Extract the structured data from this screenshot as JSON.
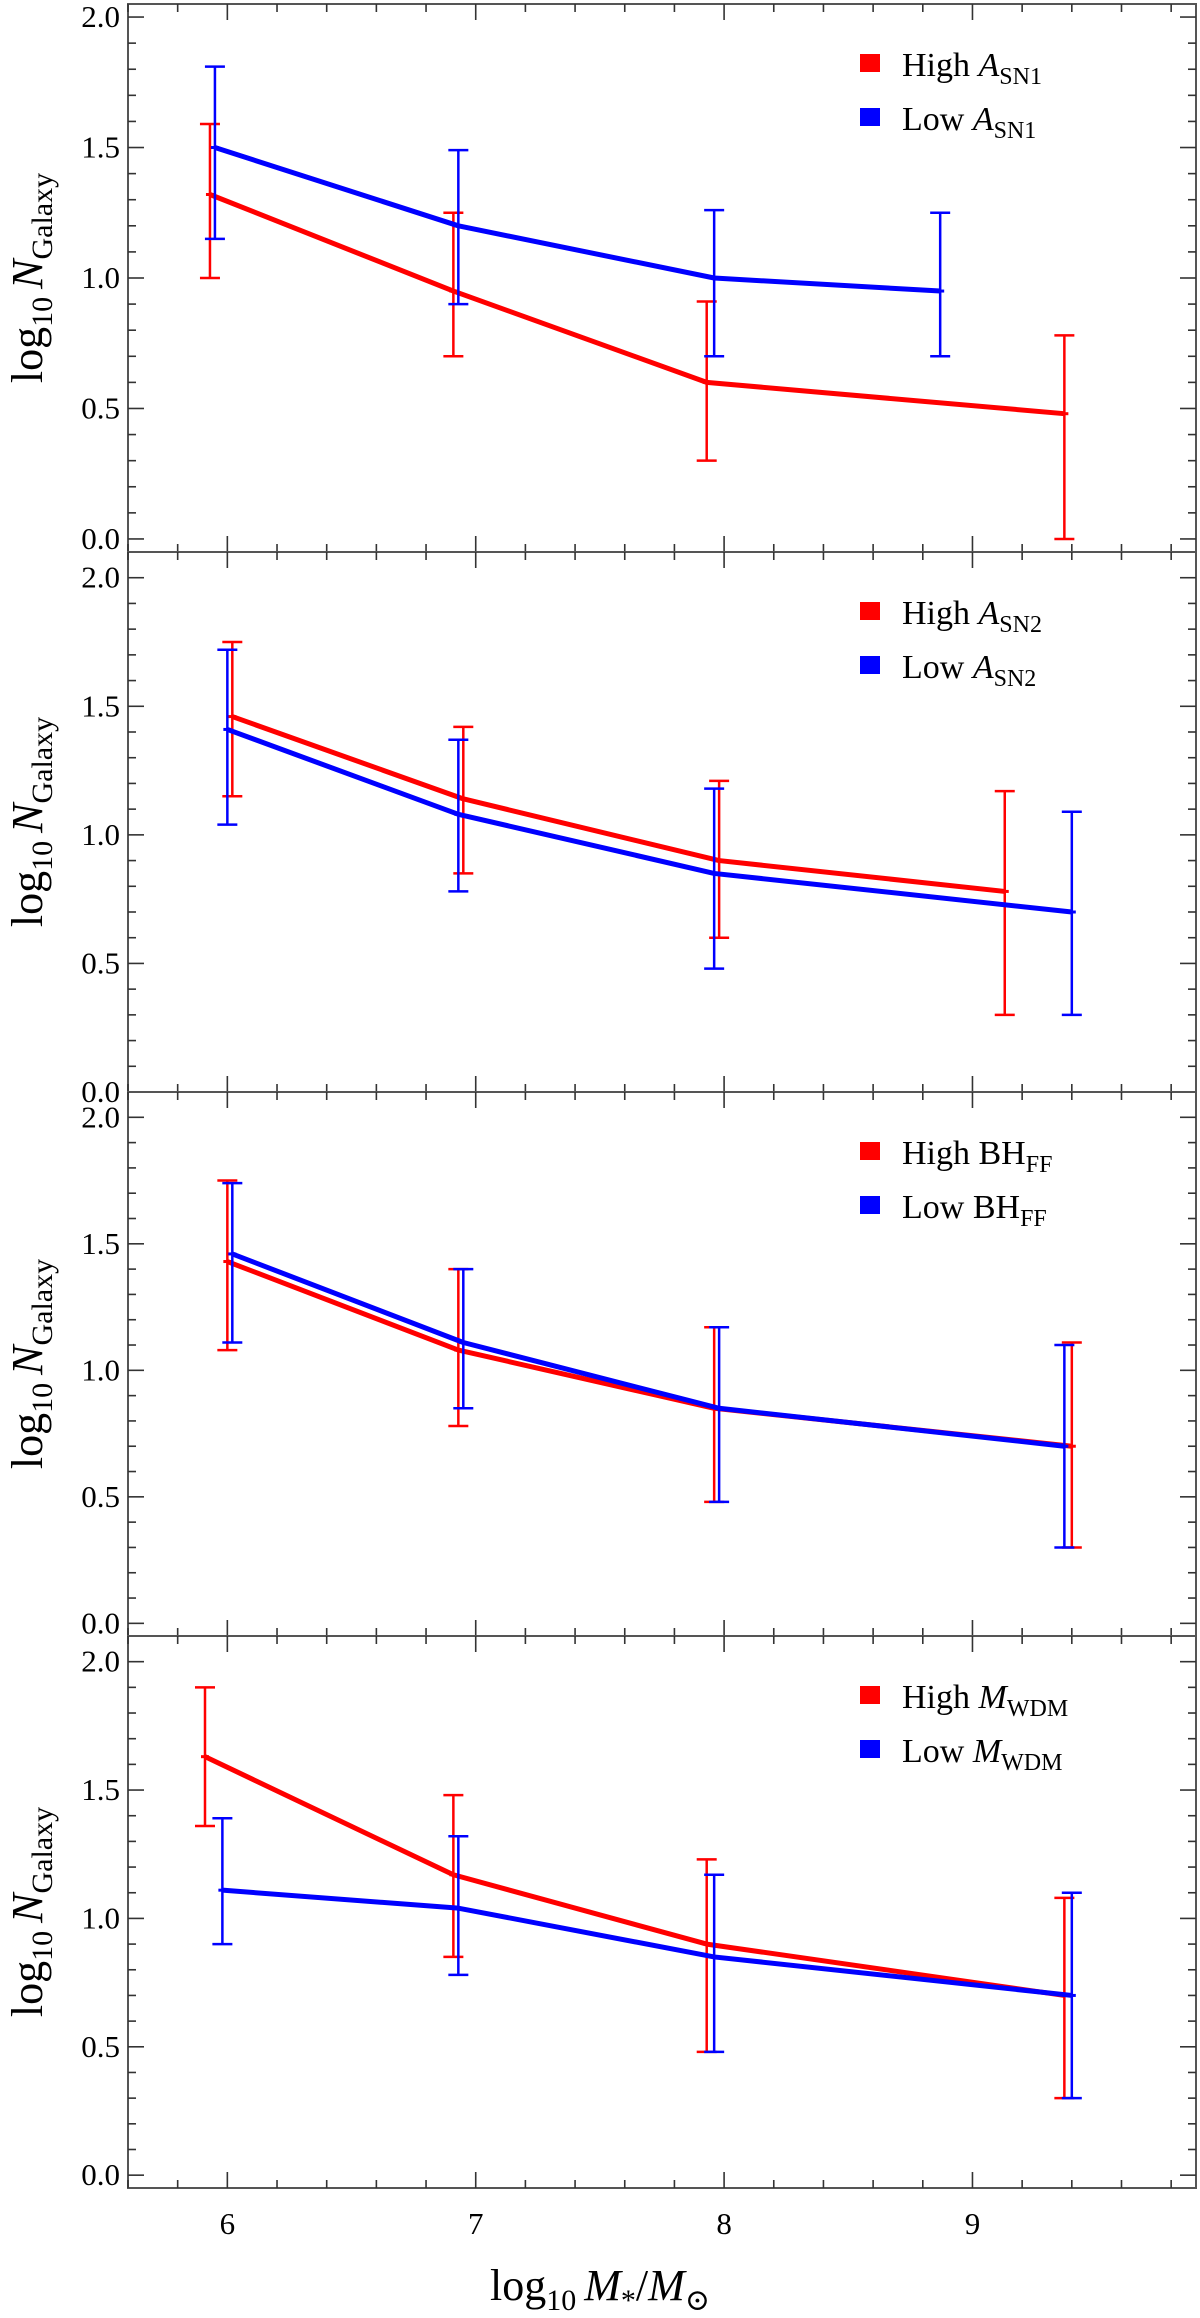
{
  "figure": {
    "xlabel": {
      "base": "log",
      "sub": "10",
      "math_M": "M",
      "sub_star": "*",
      "slash": "/",
      "math_M2": "M",
      "sub_sun": "⊙"
    },
    "ylabel": {
      "base": "log",
      "sub": "10",
      "math_N": "N",
      "sub_galaxy": "Galaxy"
    },
    "x_ticks": [
      "6",
      "7",
      "8",
      "9"
    ],
    "xlim": [
      5.6,
      9.9
    ]
  },
  "chart_data": [
    {
      "type": "line",
      "panel": "A_SN1",
      "ylim": [
        -0.05,
        2.05
      ],
      "y_ticks": [
        "0.0",
        "0.5",
        "1.0",
        "1.5",
        "2.0"
      ],
      "legend": [
        {
          "word": "High",
          "symbol": "A",
          "sub": "SN1",
          "color": "#ff0000",
          "italic": true
        },
        {
          "word": "Low",
          "symbol": "A",
          "sub": "SN1",
          "color": "#0000ff",
          "italic": true
        }
      ],
      "series": [
        {
          "name": "High A_SN1",
          "color": "#ff0000",
          "x": [
            5.93,
            6.91,
            7.93,
            9.37
          ],
          "y": [
            1.32,
            0.95,
            0.6,
            0.48
          ],
          "err_low": [
            1.0,
            0.7,
            0.3,
            0.0
          ],
          "err_high": [
            1.59,
            1.25,
            0.91,
            0.78
          ]
        },
        {
          "name": "Low A_SN1",
          "color": "#0000ff",
          "x": [
            5.95,
            6.93,
            7.96,
            8.87
          ],
          "y": [
            1.5,
            1.2,
            1.0,
            0.95
          ],
          "err_low": [
            1.15,
            0.9,
            0.7,
            0.7
          ],
          "err_high": [
            1.81,
            1.49,
            1.26,
            1.25
          ]
        }
      ]
    },
    {
      "type": "line",
      "panel": "A_SN2",
      "ylim": [
        0.0,
        2.1
      ],
      "y_ticks": [
        "0.0",
        "0.5",
        "1.0",
        "1.5",
        "2.0"
      ],
      "legend": [
        {
          "word": "High",
          "symbol": "A",
          "sub": "SN2",
          "color": "#ff0000",
          "italic": true
        },
        {
          "word": "Low",
          "symbol": "A",
          "sub": "SN2",
          "color": "#0000ff",
          "italic": true
        }
      ],
      "series": [
        {
          "name": "High A_SN2",
          "color": "#ff0000",
          "x": [
            6.02,
            6.95,
            7.98,
            9.13
          ],
          "y": [
            1.46,
            1.14,
            0.9,
            0.78
          ],
          "err_low": [
            1.15,
            0.85,
            0.6,
            0.3
          ],
          "err_high": [
            1.75,
            1.42,
            1.21,
            1.17
          ]
        },
        {
          "name": "Low A_SN2",
          "color": "#0000ff",
          "x": [
            6.0,
            6.93,
            7.96,
            9.4
          ],
          "y": [
            1.41,
            1.08,
            0.85,
            0.7
          ],
          "err_low": [
            1.04,
            0.78,
            0.48,
            0.3
          ],
          "err_high": [
            1.72,
            1.37,
            1.18,
            1.09
          ]
        }
      ]
    },
    {
      "type": "line",
      "panel": "BH_FF",
      "ylim": [
        -0.05,
        2.1
      ],
      "y_ticks": [
        "0.0",
        "0.5",
        "1.0",
        "1.5",
        "2.0"
      ],
      "legend": [
        {
          "word": "High",
          "symbol": "BH",
          "sub": "FF",
          "color": "#ff0000",
          "italic": false
        },
        {
          "word": "Low",
          "symbol": "BH",
          "sub": "FF",
          "color": "#0000ff",
          "italic": false
        }
      ],
      "series": [
        {
          "name": "High BH_FF",
          "color": "#ff0000",
          "x": [
            6.0,
            6.93,
            7.96,
            9.4
          ],
          "y": [
            1.43,
            1.08,
            0.85,
            0.7
          ],
          "err_low": [
            1.08,
            0.78,
            0.48,
            0.3
          ],
          "err_high": [
            1.75,
            1.4,
            1.17,
            1.11
          ]
        },
        {
          "name": "Low BH_FF",
          "color": "#0000ff",
          "x": [
            6.02,
            6.95,
            7.98,
            9.37
          ],
          "y": [
            1.46,
            1.11,
            0.85,
            0.7
          ],
          "err_low": [
            1.11,
            0.85,
            0.48,
            0.3
          ],
          "err_high": [
            1.74,
            1.4,
            1.17,
            1.1
          ]
        }
      ]
    },
    {
      "type": "line",
      "panel": "M_WDM",
      "ylim": [
        -0.05,
        2.1
      ],
      "y_ticks": [
        "0.0",
        "0.5",
        "1.0",
        "1.5",
        "2.0"
      ],
      "legend": [
        {
          "word": "High",
          "symbol": "M",
          "sub": "WDM",
          "color": "#ff0000",
          "italic": true
        },
        {
          "word": "Low",
          "symbol": "M",
          "sub": "WDM",
          "color": "#0000ff",
          "italic": true
        }
      ],
      "series": [
        {
          "name": "High M_WDM",
          "color": "#ff0000",
          "x": [
            5.91,
            6.91,
            7.93,
            9.37
          ],
          "y": [
            1.63,
            1.17,
            0.9,
            0.7
          ],
          "err_low": [
            1.36,
            0.85,
            0.48,
            0.3
          ],
          "err_high": [
            1.9,
            1.48,
            1.23,
            1.08
          ]
        },
        {
          "name": "Low M_WDM",
          "color": "#0000ff",
          "x": [
            5.98,
            6.93,
            7.96,
            9.4
          ],
          "y": [
            1.11,
            1.04,
            0.85,
            0.7
          ],
          "err_low": [
            0.9,
            0.78,
            0.48,
            0.3
          ],
          "err_high": [
            1.39,
            1.32,
            1.17,
            1.1
          ]
        }
      ]
    }
  ]
}
